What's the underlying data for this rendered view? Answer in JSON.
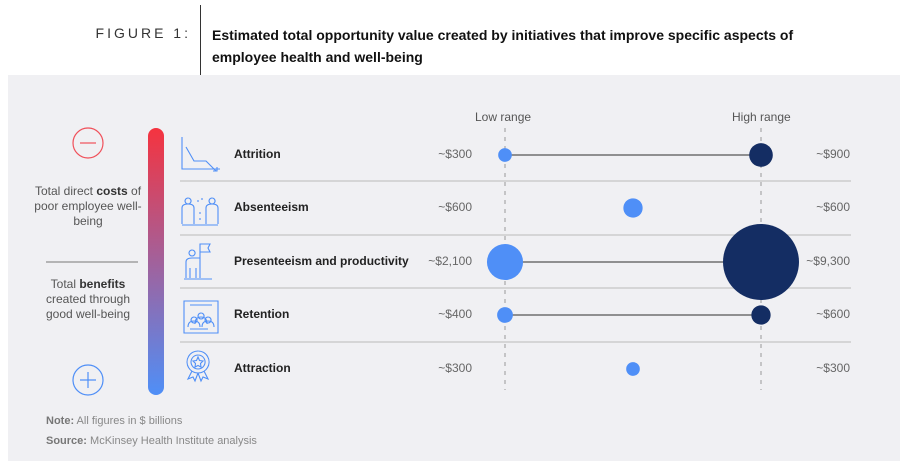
{
  "header": {
    "figure_label": "FIGURE 1:",
    "title": "Estimated total opportunity value created by initiatives that improve specific aspects of employee health and well-being"
  },
  "legend": {
    "minus_icon": "minus-circle-icon",
    "plus_icon": "plus-circle-icon",
    "costs_pre": "Total direct ",
    "costs_bold": "costs",
    "costs_post": " of poor employee well-being",
    "benefits_pre": "Total ",
    "benefits_bold": "benefits",
    "benefits_post": " created through good well-being"
  },
  "notes": {
    "note_label": "Note:",
    "note_text": " All figures in $ billions",
    "source_label": "Source:",
    "source_text": " McKinsey Health Institute analysis"
  },
  "colors": {
    "low": "#4f8ff7",
    "high": "#142d63",
    "gradient_top": "#f5333f",
    "gradient_bottom": "#4f8ff7"
  },
  "chart_data": {
    "type": "dumbbell-bubble",
    "columns": [
      "Low range",
      "High range"
    ],
    "unit": "$ billions",
    "categories": [
      "Attrition",
      "Absenteeism",
      "Presenteeism and productivity",
      "Retention",
      "Attraction"
    ],
    "icons": [
      "declining-chart-icon",
      "sick-people-icon",
      "person-flag-icon",
      "team-cycle-icon",
      "award-badge-icon"
    ],
    "low": [
      300,
      600,
      2100,
      400,
      300
    ],
    "high": [
      900,
      600,
      9300,
      600,
      300
    ],
    "low_labels": [
      "~$300",
      "~$600",
      "~$2,100",
      "~$400",
      "~$300"
    ],
    "high_labels": [
      "~$900",
      "~$600",
      "~$9,300",
      "~$600",
      "~$300"
    ]
  }
}
